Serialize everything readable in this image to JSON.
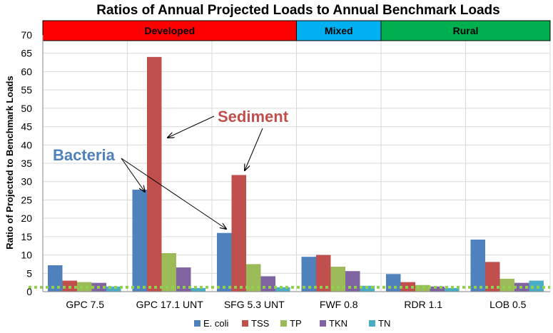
{
  "chart_data": {
    "type": "bar",
    "title": "Ratios of Annual Projected Loads to Annual Benchmark Loads",
    "ylabel": "Ratio of Projected to Benchmark Loads",
    "xlabel": "",
    "ylim": [
      0,
      70
    ],
    "yticks": [
      0,
      5,
      10,
      15,
      20,
      25,
      30,
      35,
      40,
      45,
      50,
      55,
      60,
      65,
      70
    ],
    "grid": true,
    "legend": "bottom",
    "categories": [
      "GPC 7.5",
      "GPC 17.1 UNT",
      "SFG 5.3 UNT",
      "FWF 0.8",
      "RDR 1.1",
      "LOB 0.5"
    ],
    "series": [
      {
        "name": "E. coli",
        "color": "#4f81bd",
        "values": [
          7.2,
          27.8,
          16.0,
          9.5,
          4.8,
          14.2
        ]
      },
      {
        "name": "TSS",
        "color": "#c0504d",
        "values": [
          3.0,
          64.0,
          31.8,
          10.0,
          2.6,
          8.1
        ]
      },
      {
        "name": "TP",
        "color": "#9bbb59",
        "values": [
          2.6,
          10.5,
          7.5,
          6.8,
          1.8,
          3.5
        ]
      },
      {
        "name": "TKN",
        "color": "#8064a2",
        "values": [
          2.4,
          6.6,
          4.2,
          5.6,
          1.4,
          2.4
        ]
      },
      {
        "name": "TN",
        "color": "#4bacc6",
        "values": [
          1.4,
          1.0,
          1.2,
          1.6,
          1.0,
          3.0
        ]
      }
    ],
    "benchmark_line": {
      "value": 1.2,
      "color": "#92d050",
      "style": "dotted"
    },
    "regions": [
      {
        "label": "Developed",
        "color": "#ff0000",
        "from": 0,
        "to": 2
      },
      {
        "label": "Mixed",
        "color": "#00b0f0",
        "from": 3,
        "to": 3
      },
      {
        "label": "Rural",
        "color": "#00b050",
        "from": 4,
        "to": 5
      }
    ],
    "annotations": [
      {
        "text": "Sediment",
        "color": "#c0504d"
      },
      {
        "text": "Bacteria",
        "color": "#4f81bd"
      }
    ]
  }
}
